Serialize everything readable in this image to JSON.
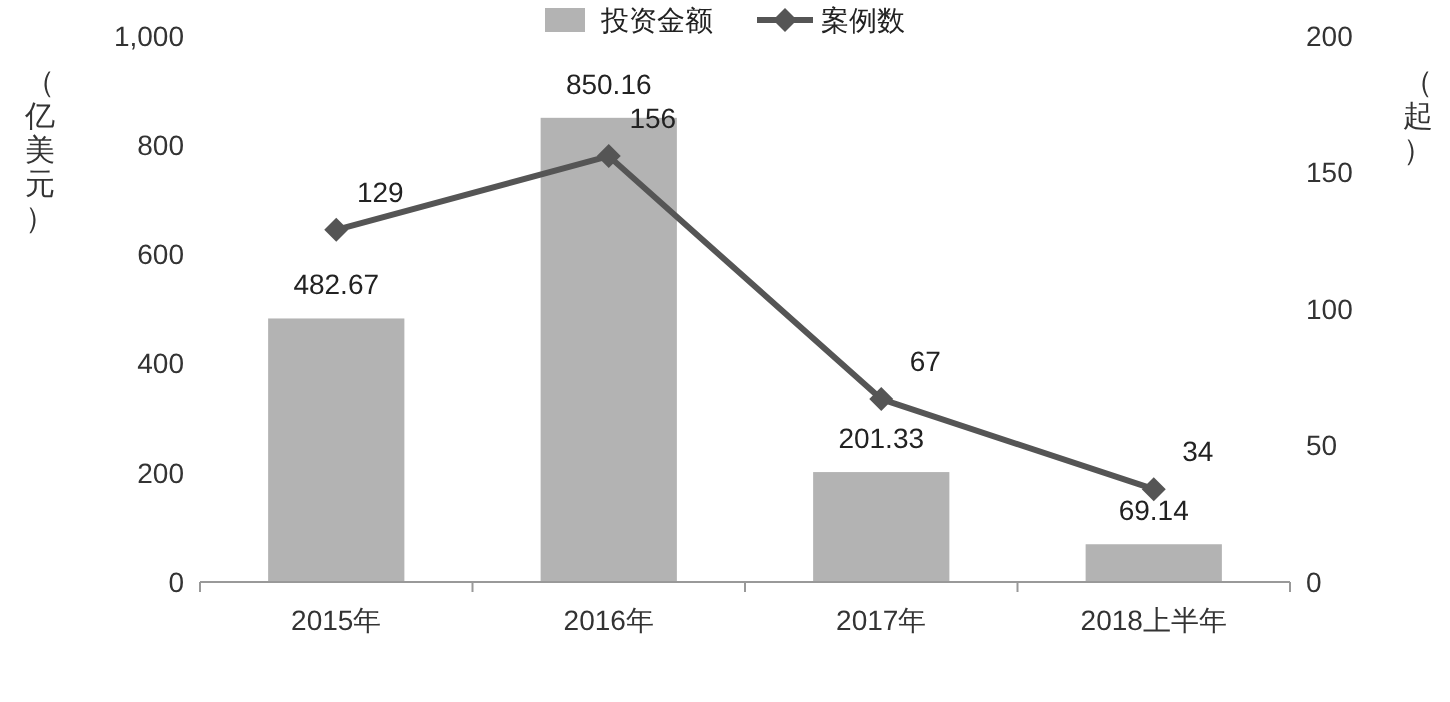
{
  "chart_data": {
    "type": "bar",
    "categories": [
      "2015年",
      "2016年",
      "2017年",
      "2018上半年"
    ],
    "series": [
      {
        "name": "投资金额",
        "color": "#b3b3b3",
        "values": [
          482.67,
          850.16,
          201.33,
          69.14
        ]
      },
      {
        "name": "案例数",
        "type": "line",
        "axis": "y2",
        "color": "#555555",
        "values": [
          129,
          156,
          67,
          34
        ]
      }
    ],
    "ylabel": "（亿美元）",
    "y2label": "（起）",
    "ylim": [
      0,
      1000
    ],
    "yticks": [
      0,
      200,
      400,
      600,
      800,
      {
        "value": 1000,
        "label": "1,000"
      }
    ],
    "y2lim": [
      0,
      200
    ],
    "y2ticks": [
      0,
      50,
      100,
      150,
      200
    ],
    "data_labels": true,
    "legend": "top",
    "marker": "diamond",
    "line_style": "solid",
    "grid": false
  }
}
